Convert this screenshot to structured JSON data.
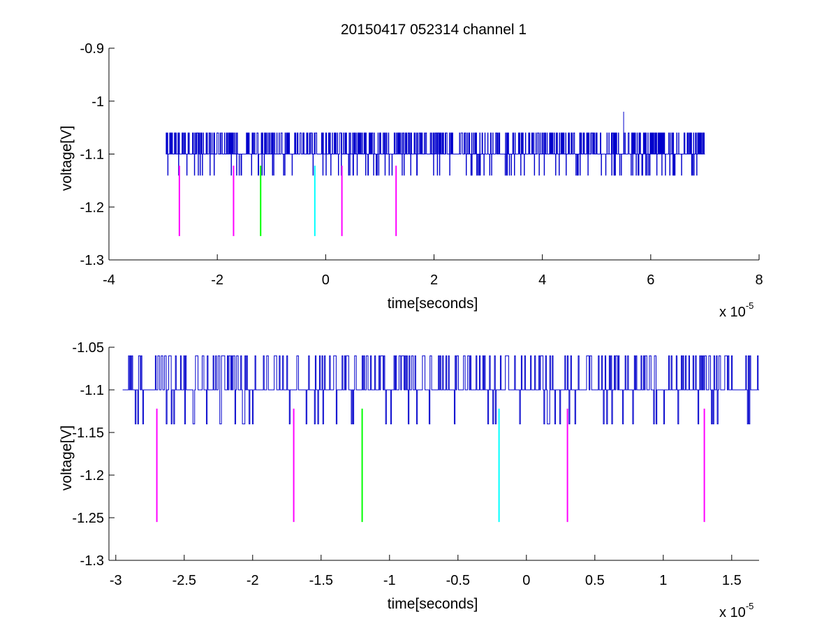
{
  "figure": {
    "title": "20150417 052314 channel 1"
  },
  "chart_data": [
    {
      "type": "line",
      "title": "20150417 052314 channel 1",
      "xlabel": "time[seconds]",
      "ylabel": "voltage[V]",
      "x_exponent_label": "x 10",
      "x_exponent": "-5",
      "xlim": [
        -4,
        8
      ],
      "ylim": [
        -1.3,
        -0.9
      ],
      "xticks": [
        -4,
        -2,
        0,
        2,
        4,
        6,
        8
      ],
      "xtick_labels": [
        "-4",
        "-2",
        "0",
        "2",
        "4",
        "6",
        "8"
      ],
      "yticks": [
        -1.3,
        -1.2,
        -1.1,
        -1.0,
        -0.9
      ],
      "ytick_labels": [
        "-1.3",
        "-1.2",
        "-1.1",
        "-1",
        "-0.9"
      ],
      "grid": false,
      "signal": {
        "color": "#0000cc",
        "x_start": -2.95,
        "x_end": 7.0,
        "baseline": -1.1,
        "levels": [
          -1.06,
          -1.1,
          -1.14
        ],
        "spike": {
          "x": 5.5,
          "y": -1.02
        }
      },
      "markers": [
        {
          "x": -2.7,
          "y_top": -1.122,
          "y_bottom": -1.255,
          "color": "#ff00ff"
        },
        {
          "x": -1.7,
          "y_top": -1.122,
          "y_bottom": -1.255,
          "color": "#ff00ff"
        },
        {
          "x": -1.2,
          "y_top": -1.122,
          "y_bottom": -1.255,
          "color": "#00ff00"
        },
        {
          "x": -0.2,
          "y_top": -1.122,
          "y_bottom": -1.255,
          "color": "#00ffff"
        },
        {
          "x": 0.3,
          "y_top": -1.122,
          "y_bottom": -1.255,
          "color": "#ff00ff"
        },
        {
          "x": 1.3,
          "y_top": -1.122,
          "y_bottom": -1.255,
          "color": "#ff00ff"
        }
      ]
    },
    {
      "type": "line",
      "title": "",
      "xlabel": "time[seconds]",
      "ylabel": "voltage[V]",
      "x_exponent_label": "x 10",
      "x_exponent": "-5",
      "xlim": [
        -3.05,
        1.7
      ],
      "ylim": [
        -1.3,
        -1.05
      ],
      "xticks": [
        -3,
        -2.5,
        -2,
        -1.5,
        -1,
        -0.5,
        0,
        0.5,
        1,
        1.5
      ],
      "xtick_labels": [
        "-3",
        "-2.5",
        "-2",
        "-1.5",
        "-1",
        "-0.5",
        "0",
        "0.5",
        "1",
        "1.5"
      ],
      "yticks": [
        -1.3,
        -1.25,
        -1.2,
        -1.15,
        -1.1,
        -1.05
      ],
      "ytick_labels": [
        "-1.3",
        "-1.25",
        "-1.2",
        "-1.15",
        "-1.1",
        "-1.05"
      ],
      "grid": false,
      "signal": {
        "color": "#0000cc",
        "x_start": -2.95,
        "x_end": 1.7,
        "baseline": -1.1,
        "levels": [
          -1.06,
          -1.1,
          -1.14
        ]
      },
      "markers": [
        {
          "x": -2.7,
          "y_top": -1.122,
          "y_bottom": -1.255,
          "color": "#ff00ff"
        },
        {
          "x": -1.7,
          "y_top": -1.122,
          "y_bottom": -1.255,
          "color": "#ff00ff"
        },
        {
          "x": -1.2,
          "y_top": -1.122,
          "y_bottom": -1.255,
          "color": "#00ff00"
        },
        {
          "x": -0.2,
          "y_top": -1.122,
          "y_bottom": -1.255,
          "color": "#00ffff"
        },
        {
          "x": 0.3,
          "y_top": -1.122,
          "y_bottom": -1.255,
          "color": "#ff00ff"
        },
        {
          "x": 1.3,
          "y_top": -1.122,
          "y_bottom": -1.255,
          "color": "#ff00ff"
        }
      ]
    }
  ]
}
